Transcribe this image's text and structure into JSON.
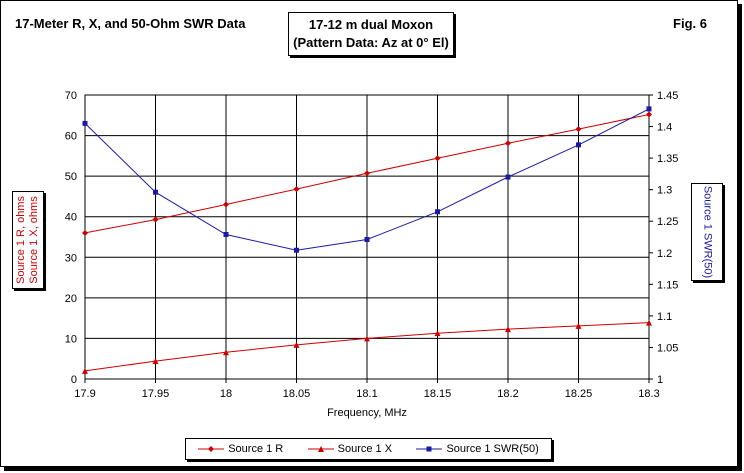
{
  "header": {
    "left_title": "17-Meter R, X, and 50-Ohm SWR Data",
    "center_line1": "17-12 m dual Moxon",
    "center_line2": "(Pattern Data: Az at 0° El)",
    "fig_label": "Fig. 6"
  },
  "chart_data": {
    "type": "line",
    "xlabel": "Frequency, MHz",
    "ylabel_left_line1": "Source 1 R, ohms",
    "ylabel_left_line2": "Source 1 X, ohms",
    "ylabel_right": "Source 1 SWR(50)",
    "x": [
      17.9,
      17.95,
      18.0,
      18.05,
      18.1,
      18.15,
      18.2,
      18.25,
      18.3
    ],
    "x_tick_labels": [
      "17.9",
      "17.95",
      "18",
      "18.05",
      "18.1",
      "18.15",
      "18.2",
      "18.25",
      "18.3"
    ],
    "xlim": [
      17.9,
      18.3
    ],
    "ylim_left": [
      0,
      70
    ],
    "y_left_ticks": [
      0,
      10,
      20,
      30,
      40,
      50,
      60,
      70
    ],
    "ylim_right": [
      1.0,
      1.45
    ],
    "y_right_ticks": [
      "1",
      "1.05",
      "1.1",
      "1.15",
      "1.2",
      "1.25",
      "1.3",
      "1.35",
      "1.4",
      "1.45"
    ],
    "grid": true,
    "legend_position": "bottom",
    "series": [
      {
        "name": "Source 1 R",
        "axis": "left",
        "color": "#cc0000",
        "marker": "diamond",
        "values": [
          36,
          39.3,
          43,
          46.8,
          50.7,
          54.4,
          58.1,
          61.6,
          65.2
        ]
      },
      {
        "name": "Source 1 X",
        "axis": "left",
        "color": "#cc0000",
        "marker": "triangle",
        "values": [
          2,
          4.4,
          6.6,
          8.4,
          10.0,
          11.3,
          12.3,
          13.1,
          13.9
        ]
      },
      {
        "name": "Source 1 SWR(50)",
        "axis": "right",
        "color": "#1a1aa6",
        "marker": "square",
        "values": [
          1.405,
          1.296,
          1.229,
          1.204,
          1.221,
          1.265,
          1.32,
          1.371,
          1.428
        ]
      }
    ]
  }
}
